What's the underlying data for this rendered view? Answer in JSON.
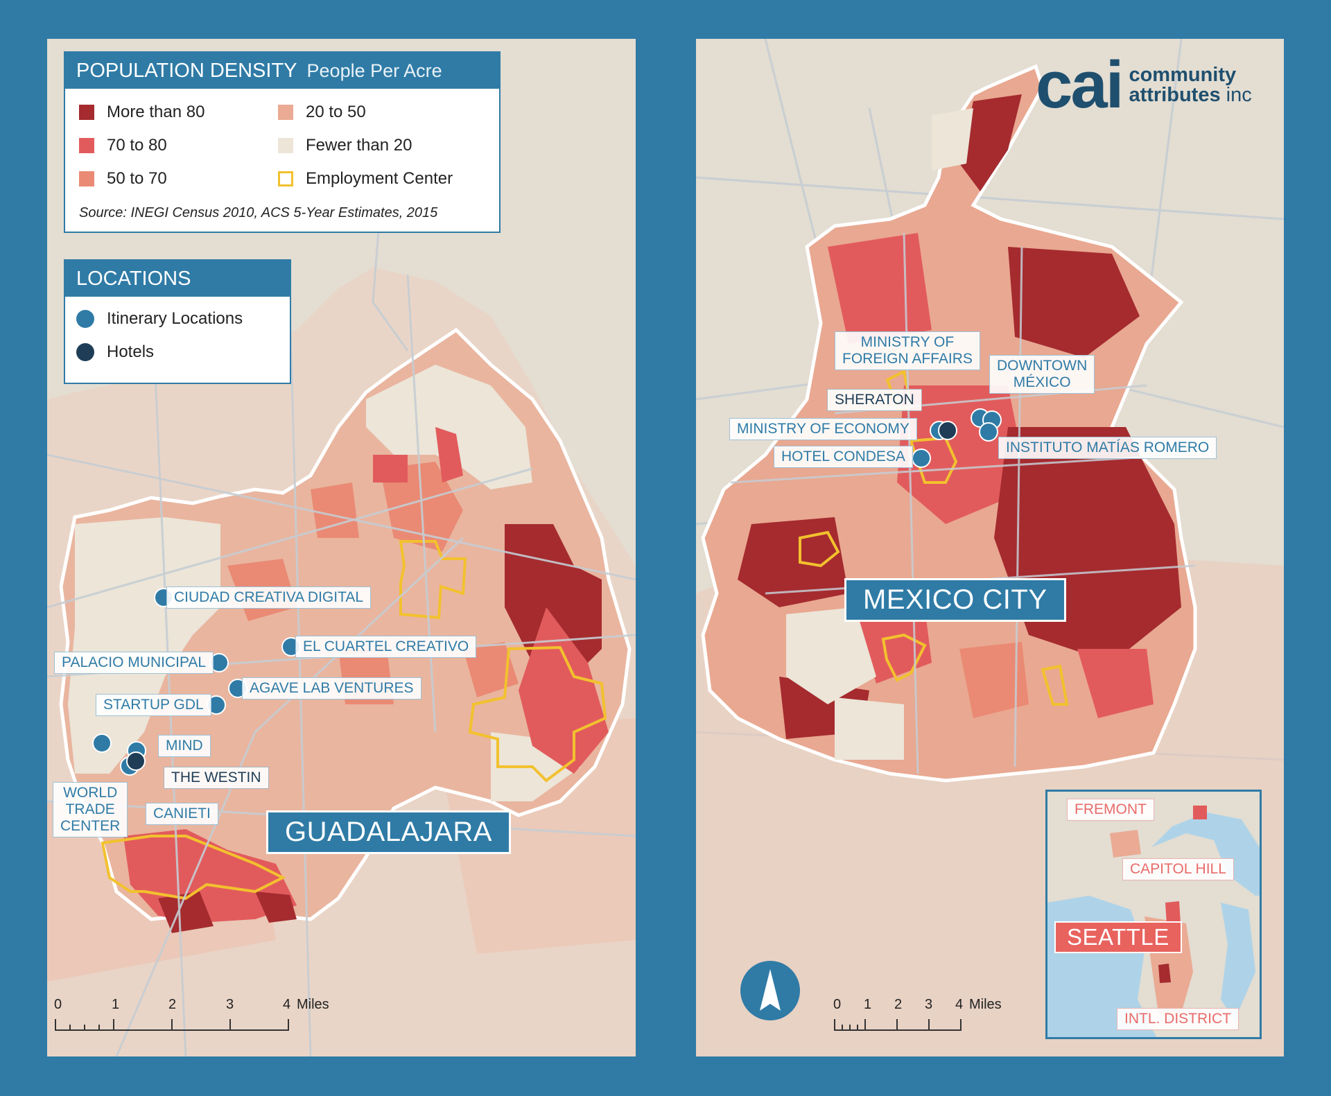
{
  "legend": {
    "title": "POPULATION DENSITY",
    "subtitle": "People Per Acre",
    "items": [
      {
        "label": "More than 80",
        "color": "#a52b2f"
      },
      {
        "label": "70 to 80",
        "color": "#e25b5c"
      },
      {
        "label": "50 to 70",
        "color": "#ea8a74"
      },
      {
        "label": "20 to 50",
        "color": "#eaaa93"
      },
      {
        "label": "Fewer than 20",
        "color": "#ece5d8"
      },
      {
        "label": "Employment Center",
        "color": "#f2c12e"
      }
    ],
    "source": "Source: INEGI Census 2010, ACS 5-Year Estimates, 2015"
  },
  "locations_legend": {
    "title": "LOCATIONS",
    "items": [
      {
        "label": "Itinerary Locations",
        "color": "#2f7ba6"
      },
      {
        "label": "Hotels",
        "color": "#1f3d56"
      }
    ]
  },
  "guadalajara": {
    "city_label": "GUADALAJARA",
    "labels": {
      "ciudad": "CIUDAD CREATIVA DIGITAL",
      "cuartel": "EL CUARTEL CREATIVO",
      "palacio": "PALACIO MUNICIPAL",
      "agave": "AGAVE LAB VENTURES",
      "startup": "STARTUP GDL",
      "mind": "MIND",
      "westin": "THE WESTIN",
      "wtc_1": "WORLD",
      "wtc_2": "TRADE",
      "wtc_3": "CENTER",
      "canieti": "CANIETI"
    },
    "scale": {
      "ticks": [
        "0",
        "1",
        "2",
        "3",
        "4"
      ],
      "unit": "Miles"
    }
  },
  "mexico_city": {
    "city_label": "MEXICO CITY",
    "labels": {
      "foreign_1": "MINISTRY OF",
      "foreign_2": "FOREIGN AFFAIRS",
      "downtown_1": "DOWNTOWN",
      "downtown_2": "MÉXICO",
      "sheraton": "SHERATON",
      "economy": "MINISTRY OF ECONOMY",
      "instituto": "INSTITUTO MATÍAS ROMERO",
      "condesa": "HOTEL CONDESA"
    },
    "scale": {
      "ticks": [
        "0",
        "1",
        "2",
        "3",
        "4"
      ],
      "unit": "Miles"
    }
  },
  "seattle_inset": {
    "city_label": "SEATTLE",
    "labels": {
      "fremont": "FREMONT",
      "capitol": "CAPITOL HILL",
      "intl": "INTL. DISTRICT"
    }
  },
  "logo": {
    "mark": "cai",
    "line1": "community",
    "line2": "attributes",
    "line3": "inc"
  },
  "colors": {
    "frame": "#2f7ba6",
    "land": "#e3ddd2",
    "water": "#aed3e8",
    "road": "#c6cdd3",
    "boundary": "#ffffff",
    "hotel": "#1f3d56",
    "itinerary": "#2f7ba6"
  }
}
